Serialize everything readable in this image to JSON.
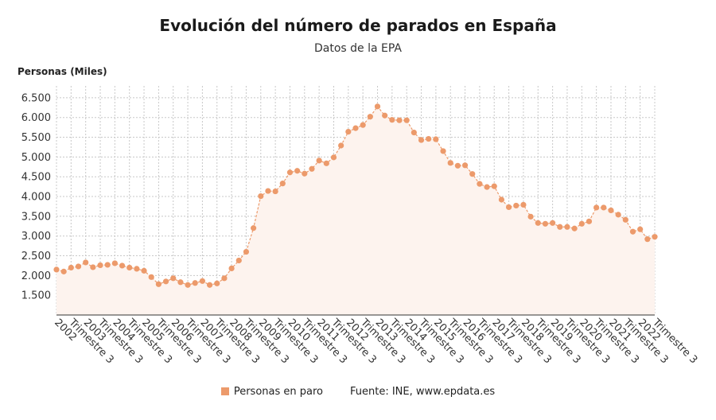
{
  "header": {
    "title": "Evolución del número de parados en España",
    "subtitle": "Datos de la EPA"
  },
  "legend": {
    "series_label": "Personas en paro",
    "source": "Fuente: INE, www.epdata.es"
  },
  "colors": {
    "series": "#ec9a6b",
    "area": "#fdf3ee",
    "grid": "#c8c8c8"
  },
  "chart_data": {
    "type": "line",
    "ylabel": "Personas (Miles)",
    "xlabel": "",
    "ylim": [
      1000,
      6800
    ],
    "yticks": [
      1500,
      2000,
      2500,
      3000,
      3500,
      4000,
      4500,
      5000,
      5500,
      6000,
      6500
    ],
    "ytick_labels": [
      "1.500",
      "2.000",
      "2.500",
      "3.000",
      "3.500",
      "4.000",
      "4.500",
      "5.000",
      "5.500",
      "6.000",
      "6.500"
    ],
    "grid": true,
    "legend_position": "bottom",
    "x_tick_labels": [
      "2002",
      "Trimestre 3",
      "2003",
      "Trimestre 3",
      "2004",
      "Trimestre 3",
      "2005",
      "Trimestre 3",
      "2006",
      "Trimestre 3",
      "2007",
      "Trimestre 3",
      "2008",
      "Trimestre 3",
      "2009",
      "Trimestre 3",
      "2010",
      "Trimestre 3",
      "2011",
      "Trimestre 3",
      "2012",
      "Trimestre 3",
      "2013",
      "Trimestre 3",
      "2014",
      "Trimestre 3",
      "2015",
      "Trimestre 3",
      "2016",
      "Trimestre 3",
      "2017",
      "Trimestre 3",
      "2018",
      "Trimestre 3",
      "2019",
      "Trimestre 3",
      "2020",
      "Trimestre 3",
      "2021",
      "Trimestre 3",
      "2022",
      "Trimestre 3"
    ],
    "series": [
      {
        "name": "Personas en paro",
        "values": [
          2150,
          2100,
          2200,
          2230,
          2330,
          2210,
          2260,
          2270,
          2310,
          2250,
          2200,
          2170,
          2120,
          1960,
          1780,
          1850,
          1930,
          1830,
          1760,
          1810,
          1860,
          1760,
          1800,
          1930,
          2180,
          2380,
          2600,
          3200,
          4010,
          4140,
          4130,
          4330,
          4610,
          4650,
          4580,
          4700,
          4910,
          4840,
          4990,
          5290,
          5640,
          5730,
          5810,
          6020,
          6280,
          6050,
          5940,
          5930,
          5930,
          5620,
          5430,
          5460,
          5450,
          5150,
          4850,
          4780,
          4790,
          4570,
          4320,
          4240,
          4260,
          3920,
          3730,
          3770,
          3790,
          3490,
          3330,
          3310,
          3330,
          3230,
          3230,
          3190,
          3310,
          3370,
          3720,
          3720,
          3650,
          3540,
          3410,
          3110,
          3170,
          2920,
          2980
        ]
      }
    ]
  }
}
